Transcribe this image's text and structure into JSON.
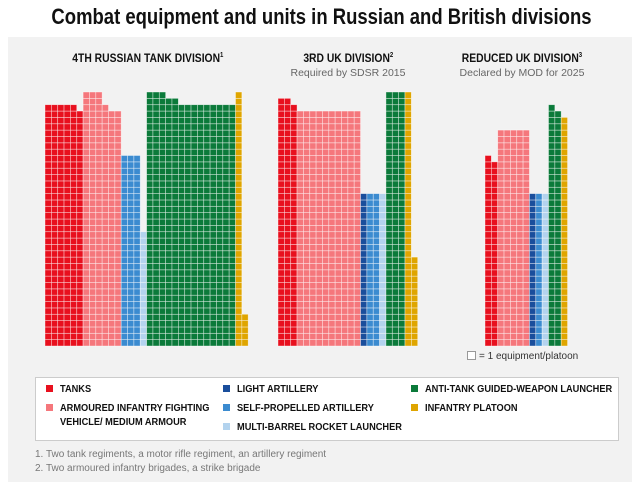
{
  "title": "Combat equipment and units in Russian and British divisions",
  "key_note": "= 1 equipment/platoon",
  "legend": [
    {
      "key": "tanks",
      "label": "TANKS",
      "color": "#e8101e"
    },
    {
      "key": "aifv",
      "label": "ARMOURED INFANTRY FIGHTING",
      "label2": "VEHICLE/ MEDIUM ARMOUR",
      "color": "#f5777c"
    },
    {
      "key": "light_artillery",
      "label": "LIGHT ARTILLERY",
      "color": "#1a4e9c"
    },
    {
      "key": "spa",
      "label": "SELF-PROPELLED ARTILLERY",
      "color": "#3b8bd0"
    },
    {
      "key": "mlrs",
      "label": "MULTI-BARREL ROCKET LAUNCHER",
      "color": "#b3d3ee"
    },
    {
      "key": "atgw",
      "label": "ANTI-TANK GUIDED-WEAPON LAUNCHER",
      "color": "#0b7a3a"
    },
    {
      "key": "infantry",
      "label": "INFANTRY PLATOON",
      "color": "#dfa500"
    }
  ],
  "footnotes": [
    "1. Two tank regiments, a motor rifle regiment, an artillery regiment",
    "2. Two armoured infantry brigades, a strike brigade"
  ],
  "chart_data": {
    "type": "waffle",
    "title": "Combat equipment and units in Russian and British divisions",
    "unit": "1 square = 1 equipment/platoon",
    "divisions": [
      {
        "name": "4TH RUSSIAN TANK DIVISION",
        "footnote_mark": "1",
        "subtitle": "",
        "columns": {
          "tanks": [
            38,
            38,
            38,
            38,
            38,
            37
          ],
          "aifv": [
            40,
            40,
            40,
            38,
            37,
            37
          ],
          "light_artillery": [],
          "spa": [
            30,
            30,
            30
          ],
          "mlrs": [
            18
          ],
          "atgw": [
            40,
            40,
            40,
            39,
            39,
            38,
            38,
            38,
            38,
            38,
            38,
            38,
            38,
            38
          ],
          "infantry": [
            40,
            5
          ]
        }
      },
      {
        "name": "3RD UK DIVISION",
        "footnote_mark": "2",
        "subtitle": "Required by SDSR 2015",
        "columns": {
          "tanks": [
            39,
            39,
            38
          ],
          "aifv": [
            37,
            37,
            37,
            37,
            37,
            37,
            37,
            37,
            37,
            37
          ],
          "light_artillery": [
            24
          ],
          "spa": [
            24,
            24
          ],
          "mlrs": [
            24
          ],
          "atgw": [
            40,
            40,
            40
          ],
          "infantry": [
            40,
            14
          ]
        }
      },
      {
        "name": "REDUCED UK DIVISION",
        "footnote_mark": "3",
        "subtitle": "Declared by MOD for 2025",
        "columns": {
          "tanks": [
            30,
            29
          ],
          "aifv": [
            34,
            34,
            34,
            34,
            34
          ],
          "light_artillery": [
            24
          ],
          "spa": [
            24
          ],
          "mlrs": [
            24
          ],
          "atgw": [
            38,
            37
          ],
          "infantry": [
            36
          ]
        }
      }
    ]
  }
}
